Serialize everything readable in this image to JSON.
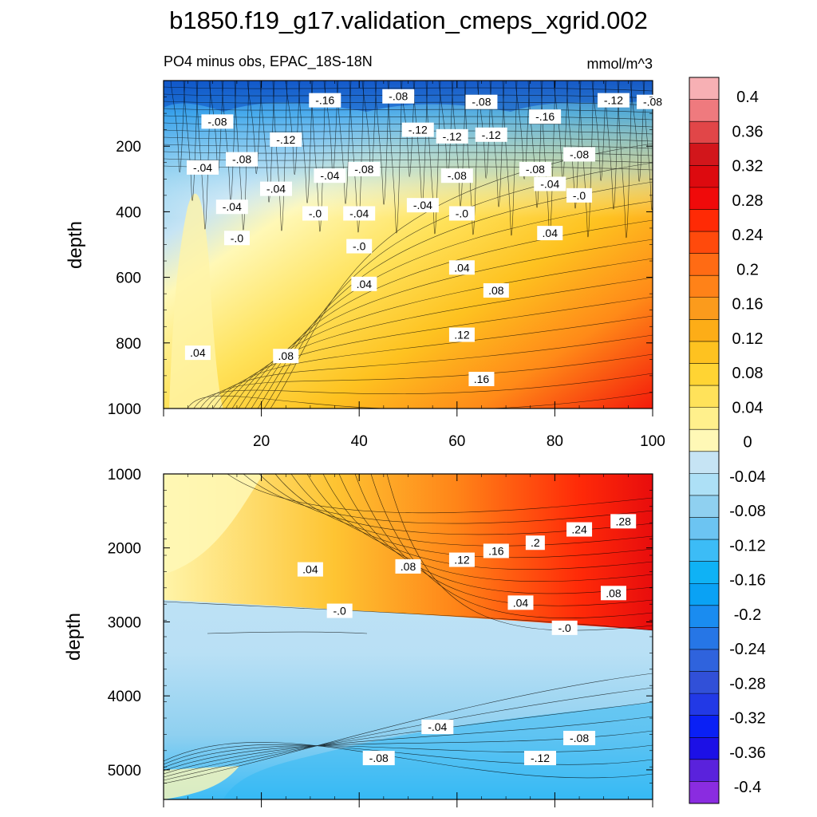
{
  "chart_data": {
    "type": "contour",
    "title": "b1850.f19_g17.validation_cmeps_xgrid.002",
    "subtitle_left": "PO4 minus obs, EPAC_18S-18N",
    "subtitle_right": "mmol/m^3",
    "ylabel": "depth",
    "xlim": [
      0,
      100
    ],
    "x_ticks": [
      "20",
      "40",
      "60",
      "80",
      "100"
    ],
    "panels": [
      {
        "name": "upper",
        "ylim": [
          0,
          1000
        ],
        "y_ticks": [
          "200",
          "400",
          "600",
          "800",
          "1000"
        ],
        "contour_labels": [
          {
            "text": "-.16",
            "x": 33,
            "y": 60
          },
          {
            "text": "-.08",
            "x": 48,
            "y": 48
          },
          {
            "text": "-.08",
            "x": 65,
            "y": 65
          },
          {
            "text": "-.12",
            "x": 92,
            "y": 60
          },
          {
            "text": "-.08",
            "x": 100,
            "y": 65
          },
          {
            "text": "-.08",
            "x": 11,
            "y": 125
          },
          {
            "text": "-.12",
            "x": 25,
            "y": 180
          },
          {
            "text": "-.12",
            "x": 52,
            "y": 150
          },
          {
            "text": "-.12",
            "x": 59,
            "y": 170
          },
          {
            "text": "-.12",
            "x": 67,
            "y": 165
          },
          {
            "text": "-.16",
            "x": 78,
            "y": 110
          },
          {
            "text": "-.04",
            "x": 8,
            "y": 265
          },
          {
            "text": "-.08",
            "x": 16,
            "y": 240
          },
          {
            "text": "-.04",
            "x": 23,
            "y": 330
          },
          {
            "text": "-.04",
            "x": 34,
            "y": 290
          },
          {
            "text": "-.08",
            "x": 41,
            "y": 270
          },
          {
            "text": "-.08",
            "x": 60,
            "y": 290
          },
          {
            "text": "-.08",
            "x": 76,
            "y": 270
          },
          {
            "text": "-.08",
            "x": 85,
            "y": 225
          },
          {
            "text": "-.04",
            "x": 79,
            "y": 315
          },
          {
            "text": "-.0",
            "x": 85,
            "y": 350
          },
          {
            "text": "-.04",
            "x": 14,
            "y": 385
          },
          {
            "text": "-.0",
            "x": 31,
            "y": 405
          },
          {
            "text": "-.04",
            "x": 40,
            "y": 405
          },
          {
            "text": "-.04",
            "x": 53,
            "y": 380
          },
          {
            "text": "-.0",
            "x": 61,
            "y": 405
          },
          {
            "text": "-.0",
            "x": 15,
            "y": 480
          },
          {
            "text": "-.0",
            "x": 40,
            "y": 505
          },
          {
            "text": ".04",
            "x": 79,
            "y": 465
          },
          {
            "text": ".04",
            "x": 61,
            "y": 570
          },
          {
            "text": ".04",
            "x": 41,
            "y": 620
          },
          {
            "text": ".08",
            "x": 68,
            "y": 640
          },
          {
            "text": ".04",
            "x": 7,
            "y": 830
          },
          {
            "text": ".08",
            "x": 25,
            "y": 840
          },
          {
            "text": ".12",
            "x": 61,
            "y": 775
          },
          {
            "text": ".16",
            "x": 65,
            "y": 910
          }
        ]
      },
      {
        "name": "lower",
        "ylim": [
          1000,
          5400
        ],
        "y_ticks": [
          "1000",
          "2000",
          "3000",
          "4000",
          "5000"
        ],
        "contour_labels": [
          {
            "text": ".28",
            "x": 94,
            "y": 1640
          },
          {
            "text": ".24",
            "x": 85,
            "y": 1750
          },
          {
            "text": ".2",
            "x": 76,
            "y": 1930
          },
          {
            "text": ".16",
            "x": 68,
            "y": 2040
          },
          {
            "text": ".12",
            "x": 61,
            "y": 2160
          },
          {
            "text": ".08",
            "x": 50,
            "y": 2250
          },
          {
            "text": ".04",
            "x": 30,
            "y": 2290
          },
          {
            "text": ".08",
            "x": 92,
            "y": 2610
          },
          {
            "text": ".04",
            "x": 73,
            "y": 2740
          },
          {
            "text": "-.0",
            "x": 36,
            "y": 2850
          },
          {
            "text": "-.0",
            "x": 82,
            "y": 3080
          },
          {
            "text": "-.04",
            "x": 56,
            "y": 4420
          },
          {
            "text": "-.08",
            "x": 85,
            "y": 4570
          },
          {
            "text": "-.12",
            "x": 77,
            "y": 4840
          },
          {
            "text": "-.08",
            "x": 44,
            "y": 4840
          }
        ]
      }
    ],
    "colorbar": {
      "labels": [
        "0.4",
        "0.36",
        "0.32",
        "0.28",
        "0.24",
        "0.2",
        "0.16",
        "0.12",
        "0.08",
        "0.04",
        "0",
        "-0.04",
        "-0.08",
        "-0.12",
        "-0.16",
        "-0.2",
        "-0.24",
        "-0.28",
        "-0.32",
        "-0.36",
        "-0.4"
      ],
      "colors": [
        "#f7b0b4",
        "#ef7a7e",
        "#e14648",
        "#d2161b",
        "#dd0a0f",
        "#f00a0a",
        "#ff2a05",
        "#ff4a0c",
        "#ff6b14",
        "#ff8218",
        "#fb9b1c",
        "#fdad17",
        "#fec220",
        "#ffd433",
        "#ffe25a",
        "#fff08c",
        "#fff8b6",
        "#c6e4f4",
        "#ade0f6",
        "#8fd0f0",
        "#6cc4f2",
        "#3cbcf6",
        "#0fb2f5",
        "#0aa2f4",
        "#1a8cf0",
        "#2676e6",
        "#2f63dd",
        "#3150d8",
        "#2239e6",
        "#0a20f5",
        "#1c10e6",
        "#5a22dc",
        "#8a2ce0"
      ]
    }
  }
}
